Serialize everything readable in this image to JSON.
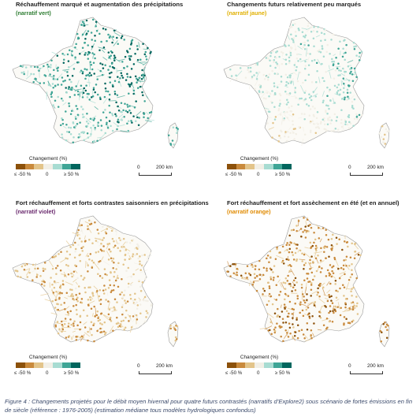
{
  "colors": {
    "dry_strong": "#8c510a",
    "dry_mid": "#c98a3c",
    "dry_light": "#e3c48a",
    "neutral": "#f2efe6",
    "wet_light": "#a8dcd2",
    "wet_mid": "#3fa596",
    "wet_strong": "#01665e",
    "subtitle_green": "#2e7d32",
    "subtitle_yellow": "#e0b000",
    "subtitle_purple": "#6a2a6e",
    "subtitle_orange": "#e08a00",
    "caption_text": "#3b4a6b"
  },
  "panels": [
    {
      "title": "Réchauffement marqué et augmentation des précipitations",
      "subtitle": "(narratif vert)",
      "subtitle_color": "#2e7d32",
      "pattern": "wet",
      "legend": {
        "title": "Changement (%)",
        "min_label": "≤ -50 %",
        "mid_label": "0",
        "max_label": "≥ 50 %"
      },
      "scale": {
        "zero": "0",
        "distance": "200 km"
      }
    },
    {
      "title": "Changements futurs relativement peu marqués",
      "subtitle": "(narratif jaune)",
      "subtitle_color": "#e0b000",
      "pattern": "mild",
      "legend": {
        "title": "Changement (%)",
        "min_label": "≤ -50 %",
        "mid_label": "0",
        "max_label": "≥ 50 %"
      },
      "scale": {
        "zero": "0",
        "distance": "200 km"
      }
    },
    {
      "title": "Fort réchauffement et forts contrastes saisonniers en précipitations",
      "subtitle": "(narratif violet)",
      "subtitle_color": "#6a2a6e",
      "pattern": "contrast",
      "legend": {
        "title": "Changement (%)",
        "min_label": "≤ -50 %",
        "mid_label": "0",
        "max_label": "≥ 50 %"
      },
      "scale": {
        "zero": "0",
        "distance": "200 km"
      }
    },
    {
      "title": "Fort réchauffement et fort assèchement en été (et en annuel)",
      "subtitle": "(narratif orange)",
      "subtitle_color": "#e08a00",
      "pattern": "dry",
      "legend": {
        "title": "Changement (%)",
        "min_label": "≤ -50 %",
        "mid_label": "0",
        "max_label": "≥ 50 %"
      },
      "scale": {
        "zero": "0",
        "distance": "200 km"
      }
    }
  ],
  "caption": "Figure 4 : Changements projetés pour le débit moyen hivernal pour quatre futurs contrastés (narratifs d’Explore2) sous scénario de fortes émissions en fin de siècle (référence : 1976-2005) (estimation médiane tous modèles hydrologiques confondus)"
}
